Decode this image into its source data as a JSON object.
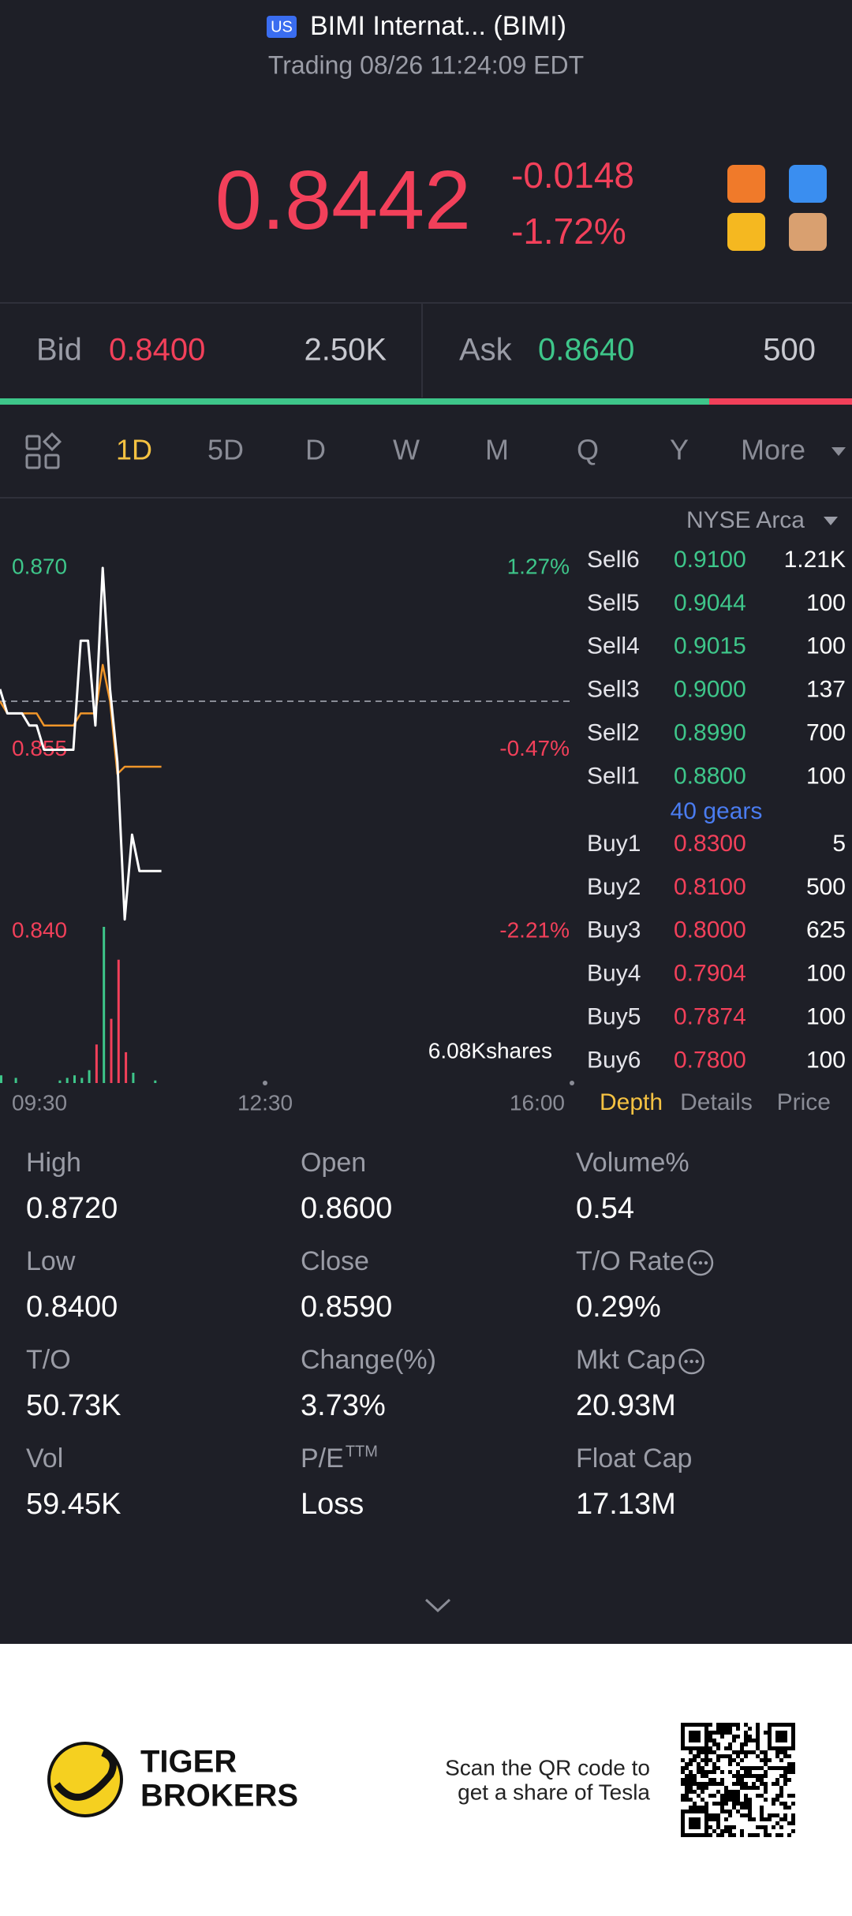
{
  "header": {
    "market": "US",
    "title": "BIMI Internat... (BIMI)",
    "status": "Trading 08/26 11:24:09 EDT"
  },
  "quote": {
    "price": "0.8442",
    "change": "-0.0148",
    "change_pct": "-1.72%"
  },
  "bid_ask": {
    "bid_label": "Bid",
    "bid": "0.8400",
    "bid_size": "2.50K",
    "ask_label": "Ask",
    "ask": "0.8640",
    "ask_size": "500"
  },
  "tabs": [
    "1D",
    "5D",
    "D",
    "W",
    "M",
    "Q",
    "Y",
    "More"
  ],
  "chart": {
    "prev_close": 0.859,
    "yticks": [
      {
        "value": 0.87,
        "label": "0.870"
      },
      {
        "value": 0.855,
        "label": "0.855"
      },
      {
        "value": 0.84,
        "label": "0.840"
      }
    ],
    "y2ticks": [
      {
        "value": 1.27,
        "label": "1.27%"
      },
      {
        "value": -0.47,
        "label": "-0.47%"
      },
      {
        "value": -2.21,
        "label": "-2.21%"
      }
    ],
    "time_labels": [
      "09:30",
      "12:30",
      "16:00"
    ],
    "price": [
      0.86,
      0.858,
      0.858,
      0.858,
      0.857,
      0.857,
      0.855,
      0.855,
      0.855,
      0.855,
      0.855,
      0.864,
      0.864,
      0.857,
      0.87,
      0.86,
      0.854,
      0.841,
      0.848,
      0.845,
      0.845,
      0.845,
      0.845
    ],
    "average": [
      0.859,
      0.858,
      0.858,
      0.858,
      0.858,
      0.858,
      0.857,
      0.857,
      0.857,
      0.857,
      0.857,
      0.858,
      0.858,
      0.858,
      0.862,
      0.859,
      0.853,
      0.8536,
      0.8536,
      0.8536,
      0.8536,
      0.8536,
      0.8536
    ],
    "volume": [
      300,
      0,
      200,
      0,
      0,
      0,
      0,
      0,
      100,
      200,
      300,
      200,
      500,
      1500,
      6080,
      2500,
      4800,
      1200,
      400,
      0,
      0,
      100,
      0
    ],
    "volume_label": "6.08Kshares"
  },
  "order_book": {
    "exchange": "NYSE Arca",
    "asks": [
      {
        "label": "Sell6",
        "price": "0.9100",
        "size": "1.21K"
      },
      {
        "label": "Sell5",
        "price": "0.9044",
        "size": "100"
      },
      {
        "label": "Sell4",
        "price": "0.9015",
        "size": "100"
      },
      {
        "label": "Sell3",
        "price": "0.9000",
        "size": "137"
      },
      {
        "label": "Sell2",
        "price": "0.8990",
        "size": "700"
      },
      {
        "label": "Sell1",
        "price": "0.8800",
        "size": "100"
      }
    ],
    "gears": "40 gears",
    "bids": [
      {
        "label": "Buy1",
        "price": "0.8300",
        "size": "5"
      },
      {
        "label": "Buy2",
        "price": "0.8100",
        "size": "500"
      },
      {
        "label": "Buy3",
        "price": "0.8000",
        "size": "625"
      },
      {
        "label": "Buy4",
        "price": "0.7904",
        "size": "100"
      },
      {
        "label": "Buy5",
        "price": "0.7874",
        "size": "100"
      },
      {
        "label": "Buy6",
        "price": "0.7800",
        "size": "100"
      }
    ],
    "tabs": [
      "Depth",
      "Details",
      "Price"
    ]
  },
  "stats": [
    {
      "label": "High",
      "value": "0.8720"
    },
    {
      "label": "Open",
      "value": "0.8600"
    },
    {
      "label": "Volume%",
      "value": "0.54"
    },
    {
      "label": "Low",
      "value": "0.8400"
    },
    {
      "label": "Close",
      "value": "0.8590"
    },
    {
      "label": "T/O Rate",
      "value": "0.29%"
    },
    {
      "label": "T/O",
      "value": "50.73K"
    },
    {
      "label": "Change(%)",
      "value": "3.73%"
    },
    {
      "label": "Mkt Cap",
      "value": "20.93M"
    },
    {
      "label": "Vol",
      "value": "59.45K"
    },
    {
      "label": "P/E",
      "sup": "TTM",
      "value": "Loss"
    },
    {
      "label": "Float Cap",
      "value": "17.13M"
    }
  ],
  "footer": {
    "brand": [
      "TIGER",
      "BROKERS"
    ],
    "promo": [
      "Scan the QR code to",
      "get a share of Tesla"
    ]
  }
}
